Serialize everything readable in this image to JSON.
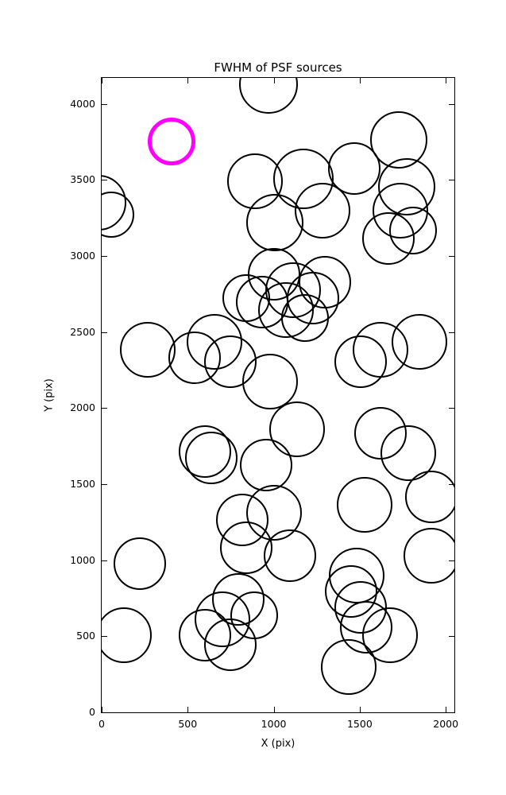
{
  "chart_data": {
    "type": "scatter",
    "title": "FWHM of PSF sources",
    "xlabel": "X (pix)",
    "ylabel": "Y (pix)",
    "xlim": [
      0,
      2050
    ],
    "ylim": [
      0,
      4170
    ],
    "x_ticks": [
      0,
      500,
      1000,
      1500,
      2000
    ],
    "y_ticks": [
      0,
      500,
      1000,
      1500,
      2000,
      2500,
      3000,
      3500,
      4000
    ],
    "grid": false,
    "legend": "none",
    "marker_style": "open-circle",
    "colors": {
      "default": "#000000",
      "highlight": "#ff00ff"
    },
    "points": [
      {
        "x": 404,
        "y": 3750,
        "r": 30,
        "color": "magenta"
      },
      {
        "x": 968,
        "y": 4130,
        "r": 37
      },
      {
        "x": 890,
        "y": 3489,
        "r": 35
      },
      {
        "x": 1174,
        "y": 3504,
        "r": 38
      },
      {
        "x": 1005,
        "y": 3218,
        "r": 36
      },
      {
        "x": 1284,
        "y": 3296,
        "r": 35
      },
      {
        "x": 1468,
        "y": 3572,
        "r": 33
      },
      {
        "x": 1725,
        "y": 3765,
        "r": 36
      },
      {
        "x": 1771,
        "y": 3452,
        "r": 36
      },
      {
        "x": 1734,
        "y": 3296,
        "r": 35
      },
      {
        "x": 1812,
        "y": 3166,
        "r": 30
      },
      {
        "x": 1665,
        "y": 3113,
        "r": 33
      },
      {
        "x": -20,
        "y": 3348,
        "r": 35
      },
      {
        "x": 55,
        "y": 3270,
        "r": 29
      },
      {
        "x": 1000,
        "y": 2879,
        "r": 33
      },
      {
        "x": 1115,
        "y": 2774,
        "r": 35
      },
      {
        "x": 1229,
        "y": 2722,
        "r": 33
      },
      {
        "x": 1069,
        "y": 2644,
        "r": 35
      },
      {
        "x": 931,
        "y": 2696,
        "r": 33
      },
      {
        "x": 839,
        "y": 2722,
        "r": 30
      },
      {
        "x": 1183,
        "y": 2592,
        "r": 30
      },
      {
        "x": 1298,
        "y": 2827,
        "r": 33
      },
      {
        "x": 266,
        "y": 2383,
        "r": 35
      },
      {
        "x": 541,
        "y": 2331,
        "r": 33
      },
      {
        "x": 656,
        "y": 2435,
        "r": 35
      },
      {
        "x": 748,
        "y": 2305,
        "r": 33
      },
      {
        "x": 977,
        "y": 2175,
        "r": 35
      },
      {
        "x": 1504,
        "y": 2305,
        "r": 33
      },
      {
        "x": 1619,
        "y": 2383,
        "r": 35
      },
      {
        "x": 1849,
        "y": 2435,
        "r": 35
      },
      {
        "x": 1138,
        "y": 1862,
        "r": 35
      },
      {
        "x": 1619,
        "y": 1836,
        "r": 33
      },
      {
        "x": 1780,
        "y": 1705,
        "r": 35
      },
      {
        "x": 601,
        "y": 1716,
        "r": 33
      },
      {
        "x": 638,
        "y": 1674,
        "r": 33
      },
      {
        "x": 954,
        "y": 1627,
        "r": 33
      },
      {
        "x": 1527,
        "y": 1366,
        "r": 35
      },
      {
        "x": 1917,
        "y": 1418,
        "r": 33
      },
      {
        "x": 817,
        "y": 1262,
        "r": 33
      },
      {
        "x": 1000,
        "y": 1314,
        "r": 35
      },
      {
        "x": 839,
        "y": 1080,
        "r": 33
      },
      {
        "x": 1092,
        "y": 1027,
        "r": 33
      },
      {
        "x": 1917,
        "y": 1027,
        "r": 35
      },
      {
        "x": 220,
        "y": 975,
        "r": 33
      },
      {
        "x": 1482,
        "y": 897,
        "r": 35
      },
      {
        "x": 1450,
        "y": 793,
        "r": 33
      },
      {
        "x": 1505,
        "y": 688,
        "r": 33
      },
      {
        "x": 702,
        "y": 610,
        "r": 35
      },
      {
        "x": 601,
        "y": 506,
        "r": 33
      },
      {
        "x": 885,
        "y": 636,
        "r": 30
      },
      {
        "x": 128,
        "y": 506,
        "r": 35
      },
      {
        "x": 748,
        "y": 443,
        "r": 33
      },
      {
        "x": 1537,
        "y": 558,
        "r": 33
      },
      {
        "x": 1674,
        "y": 506,
        "r": 35
      },
      {
        "x": 1436,
        "y": 297,
        "r": 35
      },
      {
        "x": 794,
        "y": 740,
        "r": 33
      }
    ]
  }
}
